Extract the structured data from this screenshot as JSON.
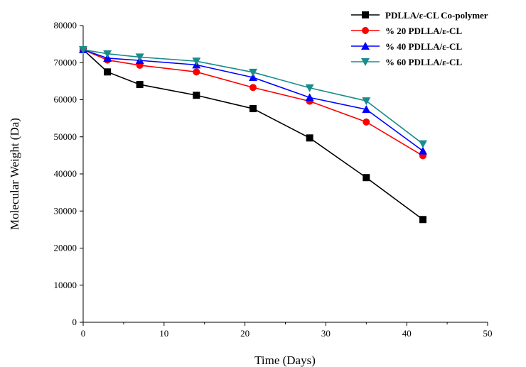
{
  "chart_data": {
    "type": "line",
    "title": "",
    "xlabel": "Time (Days)",
    "ylabel": "Molecular Weight (Da)",
    "xlim": [
      0,
      50
    ],
    "ylim": [
      0,
      80000
    ],
    "x_ticks": [
      0,
      10,
      20,
      30,
      40,
      50
    ],
    "y_ticks": [
      0,
      10000,
      20000,
      30000,
      40000,
      50000,
      60000,
      70000,
      80000
    ],
    "grid": false,
    "legend_position": "top-right",
    "x": [
      0,
      3,
      7,
      14,
      21,
      28,
      35,
      42
    ],
    "series": [
      {
        "name": "PDLLA/ε-CL Co-polymer",
        "color": "#000000",
        "marker": "square",
        "values": [
          73500,
          67500,
          64100,
          61200,
          57600,
          49700,
          39000,
          27700
        ]
      },
      {
        "name": "% 20 PDLLA/ε-CL",
        "color": "#ff0000",
        "marker": "circle",
        "values": [
          73500,
          70700,
          69300,
          67500,
          63300,
          59600,
          54000,
          44900
        ]
      },
      {
        "name": "% 40 PDLLA/ε-CL",
        "color": "#0000ff",
        "marker": "triangle-up",
        "values": [
          73500,
          71200,
          70600,
          69400,
          66000,
          60600,
          57400,
          46200
        ]
      },
      {
        "name": "% 60 PDLLA/ε-CL",
        "color": "#1a8c8c",
        "marker": "triangle-down",
        "values": [
          73500,
          72400,
          71500,
          70400,
          67400,
          63200,
          59700,
          48100
        ]
      }
    ]
  }
}
